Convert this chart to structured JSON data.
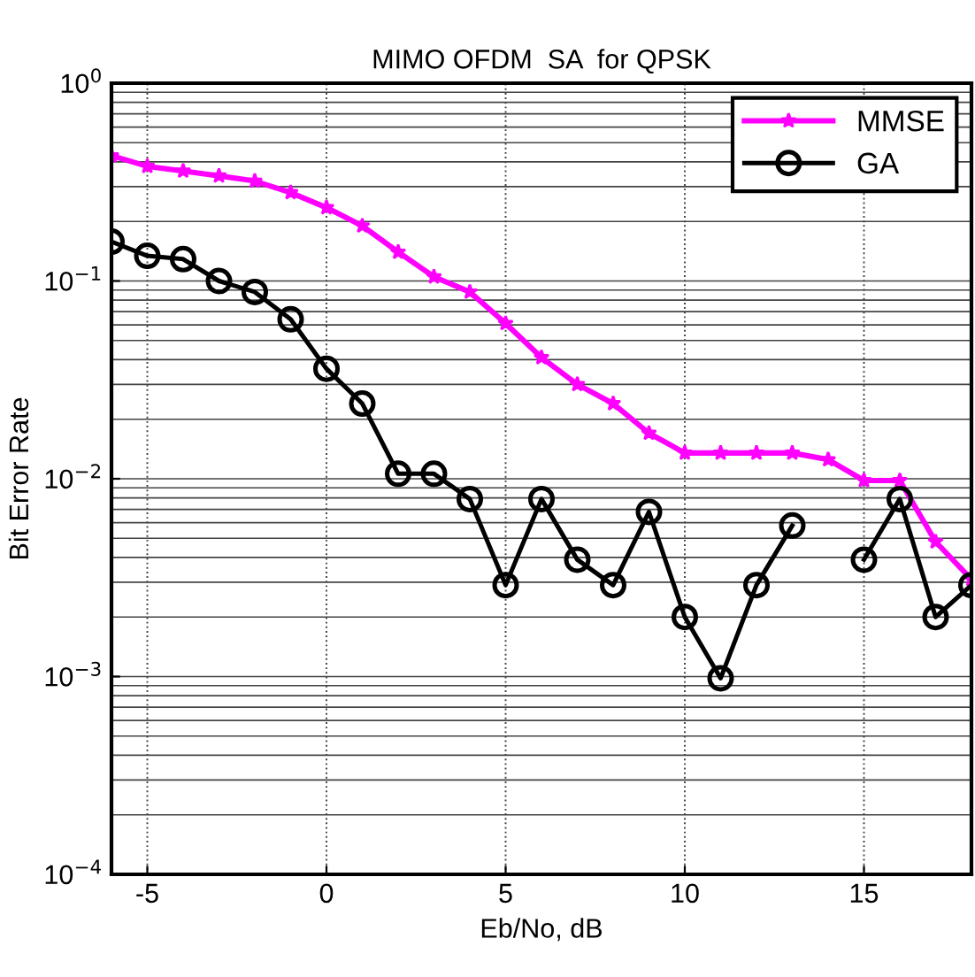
{
  "chart_data": {
    "type": "line",
    "title": "MIMO OFDM  SA  for QPSK",
    "xlabel": "Eb/No, dB",
    "ylabel": "Bit Error Rate",
    "x": [
      -6,
      -5,
      -4,
      -3,
      -2,
      -1,
      0,
      1,
      2,
      3,
      4,
      5,
      6,
      7,
      8,
      9,
      10,
      11,
      12,
      13,
      14,
      15,
      16,
      17,
      18
    ],
    "series": [
      {
        "name": "MMSE",
        "color": "#ff00ff",
        "marker": "star",
        "values": [
          0.43,
          0.38,
          0.36,
          0.34,
          0.32,
          0.28,
          0.235,
          0.19,
          0.14,
          0.105,
          0.088,
          0.061,
          0.041,
          0.03,
          0.024,
          0.017,
          0.0135,
          0.0135,
          0.0135,
          0.0135,
          0.0125,
          0.0098,
          0.0098,
          0.0048,
          0.0031
        ]
      },
      {
        "name": "GA",
        "color": "#000000",
        "marker": "circle",
        "values": [
          0.158,
          0.134,
          0.129,
          0.1,
          0.088,
          0.064,
          0.036,
          0.024,
          0.0106,
          0.0106,
          0.0079,
          0.0029,
          0.0079,
          0.0039,
          0.0029,
          0.0068,
          0.002,
          0.00098,
          0.0029,
          0.0058,
          null,
          0.0039,
          0.0079,
          0.002,
          0.0029
        ]
      }
    ],
    "log": "y",
    "xlim": [
      -6,
      18
    ],
    "xticks": [
      -5,
      0,
      5,
      10,
      15
    ],
    "ylim": [
      0.0001,
      1
    ],
    "yticks": [
      {
        "value": 0.0001,
        "label": "10$^{−4}$"
      },
      {
        "value": 0.001,
        "label": "10$^{−3}$"
      },
      {
        "value": 0.01,
        "label": "10$^{−2}$"
      },
      {
        "value": 0.1,
        "label": "10$^{−1}$"
      },
      {
        "value": 1,
        "label": "10$^{0}$"
      }
    ],
    "grid": true,
    "legend": "top right",
    "line_style": "solid"
  }
}
